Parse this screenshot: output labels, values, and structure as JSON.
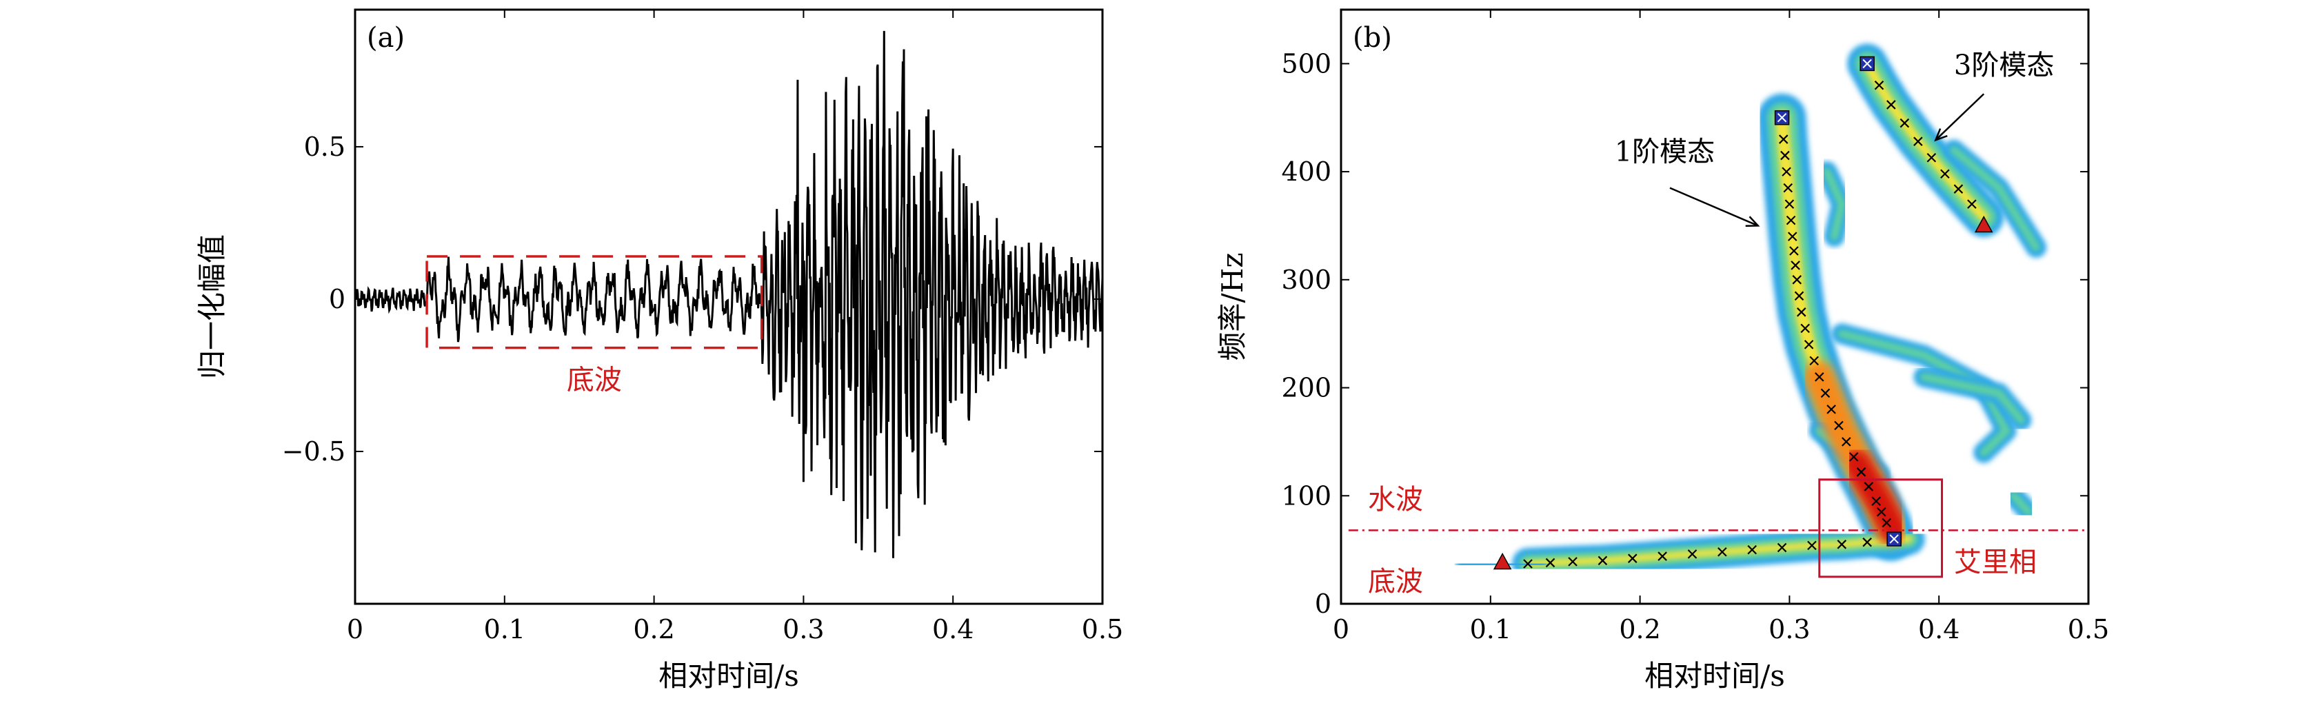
{
  "chart_data": [
    {
      "type": "line",
      "panel_label": "(a)",
      "xlabel": "相对时间/s",
      "ylabel": "归一化幅值",
      "xlim": [
        0,
        0.5
      ],
      "ylim": [
        -1.0,
        0.95
      ],
      "xticks": [
        "0",
        "0.1",
        "0.2",
        "0.3",
        "0.4",
        "0.5"
      ],
      "yticks": [
        "0.5",
        "0",
        "−0.5"
      ],
      "annotations": [
        {
          "text": "底波",
          "color": "#d11a1a",
          "region_x": [
            0.048,
            0.272
          ],
          "region_y": [
            -0.16,
            0.14
          ]
        }
      ],
      "signal": {
        "segments": [
          {
            "t": [
              0.0,
              0.048
            ],
            "amplitude": 0.035,
            "period": 0.004
          },
          {
            "t": [
              0.048,
              0.272
            ],
            "amplitude": 0.11,
            "period": 0.012
          },
          {
            "t": [
              0.272,
              0.5
            ],
            "amplitude": 0.55,
            "period": 0.004
          }
        ],
        "peaks": [
          {
            "t": 0.296,
            "y": 0.72
          },
          {
            "t": 0.3,
            "y": -0.6
          },
          {
            "t": 0.315,
            "y": 0.68
          },
          {
            "t": 0.322,
            "y": -0.62
          },
          {
            "t": 0.337,
            "y": 0.7
          },
          {
            "t": 0.345,
            "y": -0.58
          },
          {
            "t": 0.354,
            "y": 0.88
          },
          {
            "t": 0.36,
            "y": -0.85
          },
          {
            "t": 0.367,
            "y": 0.82
          },
          {
            "t": 0.382,
            "y": 0.6
          },
          {
            "t": 0.395,
            "y": -0.48
          },
          {
            "t": 0.407,
            "y": 0.38
          },
          {
            "t": 0.42,
            "y": -0.25
          },
          {
            "t": 0.46,
            "y": 0.12
          }
        ]
      }
    },
    {
      "type": "heatmap",
      "panel_label": "(b)",
      "xlabel": "相对时间/s",
      "ylabel": "频率/Hz",
      "xlim": [
        0,
        0.5
      ],
      "ylim": [
        0,
        550
      ],
      "xticks": [
        "0",
        "0.1",
        "0.2",
        "0.3",
        "0.4",
        "0.5"
      ],
      "yticks": [
        "0",
        "100",
        "200",
        "300",
        "400",
        "500"
      ],
      "colors": {
        "outer": "#2ea7e8",
        "mid": "#5fd0a0",
        "inner": "#f2e43a",
        "hot": "#f58a1f",
        "core": "#d6190c"
      },
      "mode_1_curve": [
        [
          0.295,
          450
        ],
        [
          0.296,
          430
        ],
        [
          0.298,
          400
        ],
        [
          0.3,
          370
        ],
        [
          0.302,
          340
        ],
        [
          0.305,
          300
        ],
        [
          0.308,
          270
        ],
        [
          0.313,
          240
        ],
        [
          0.32,
          210
        ],
        [
          0.328,
          180
        ],
        [
          0.338,
          150
        ],
        [
          0.348,
          122
        ],
        [
          0.358,
          95
        ],
        [
          0.365,
          75
        ],
        [
          0.368,
          62
        ]
      ],
      "mode_3_curve": [
        [
          0.352,
          500
        ],
        [
          0.36,
          480
        ],
        [
          0.368,
          462
        ],
        [
          0.377,
          445
        ],
        [
          0.386,
          428
        ],
        [
          0.395,
          413
        ],
        [
          0.404,
          398
        ],
        [
          0.413,
          384
        ],
        [
          0.422,
          370
        ],
        [
          0.43,
          358
        ]
      ],
      "bottom_band_curve": [
        [
          0.125,
          37
        ],
        [
          0.14,
          38
        ],
        [
          0.155,
          39
        ],
        [
          0.175,
          40
        ],
        [
          0.195,
          42
        ],
        [
          0.215,
          44
        ],
        [
          0.235,
          46
        ],
        [
          0.255,
          48
        ],
        [
          0.275,
          50
        ],
        [
          0.295,
          52
        ],
        [
          0.315,
          54
        ],
        [
          0.335,
          55
        ],
        [
          0.352,
          57
        ],
        [
          0.365,
          58
        ]
      ],
      "markers": [
        {
          "kind": "triangle",
          "color": "#d11a1a",
          "x": 0.108,
          "y": 38
        },
        {
          "kind": "triangle",
          "color": "#d11a1a",
          "x": 0.43,
          "y": 350
        },
        {
          "kind": "square",
          "color": "#2233aa",
          "x": 0.295,
          "y": 450
        },
        {
          "kind": "square",
          "color": "#2233aa",
          "x": 0.352,
          "y": 500
        },
        {
          "kind": "square",
          "color": "#2233aa",
          "x": 0.37,
          "y": 60
        }
      ],
      "water_wave_line_y": 68,
      "airy_box": {
        "x": [
          0.32,
          0.402
        ],
        "y": [
          25,
          115
        ]
      },
      "annotations": [
        {
          "text": "3阶模态",
          "arrow_to": [
            0.395,
            428
          ]
        },
        {
          "text": "1阶模态",
          "arrow_to": [
            0.272,
            350
          ]
        },
        {
          "text": "水波",
          "color": "#d11a1a"
        },
        {
          "text": "底波",
          "color": "#d11a1a"
        },
        {
          "text": "艾里相",
          "color": "#d11a1a"
        }
      ]
    }
  ]
}
